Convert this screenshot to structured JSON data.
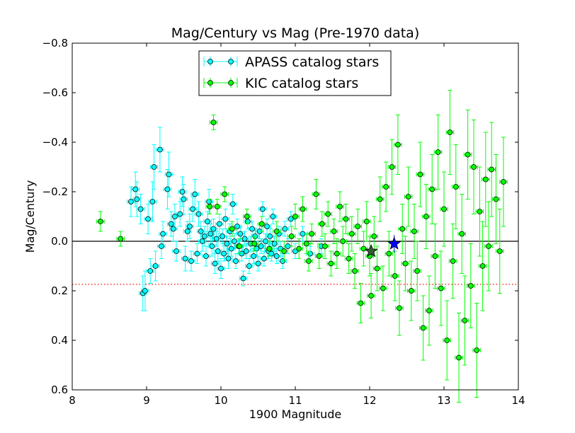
{
  "chart_data": {
    "type": "scatter",
    "title": "Mag/Century vs Mag (Pre-1970 data)",
    "xlabel": "1900 Magnitude",
    "ylabel": "Mag/Century",
    "xlim": [
      8,
      14
    ],
    "ylim": [
      0.6,
      -0.8
    ],
    "y_inverted": true,
    "xticks": [
      8,
      9,
      10,
      11,
      12,
      13,
      14
    ],
    "xtick_labels": [
      "8",
      "9",
      "10",
      "11",
      "12",
      "13",
      "14"
    ],
    "yticks": [
      -0.8,
      -0.6,
      -0.4,
      -0.2,
      0.0,
      0.2,
      0.4,
      0.6
    ],
    "ytick_labels": [
      "−0.8",
      "−0.6",
      "−0.4",
      "−0.2",
      "0.0",
      "0.2",
      "0.4",
      "0.6"
    ],
    "legend_position": "top-center",
    "colors": {
      "apass": "#00ffff",
      "kic": "#00ff00",
      "marker_edge": "#000000",
      "zero_line": "#000000",
      "dotted_line": "#ff0000",
      "target_star": "#0000ff",
      "avg_star": "#3a5a3a"
    },
    "reference_lines": [
      {
        "name": "zero-line",
        "y": 0.0,
        "style": "solid"
      },
      {
        "name": "dotted-reference",
        "y": 0.174,
        "style": "dotted"
      }
    ],
    "special_points": [
      {
        "name": "target-star",
        "marker": "star",
        "x": 12.33,
        "y": 0.01,
        "yerr": 0.035,
        "color": "#0000ff"
      },
      {
        "name": "average-star",
        "marker": "star",
        "x": 12.02,
        "y": 0.04,
        "color": "#3a5a3a"
      }
    ],
    "series": [
      {
        "name": "APASS catalog stars",
        "color": "#00ffff",
        "points": [
          [
            8.79,
            -0.16,
            0.06
          ],
          [
            8.85,
            -0.21,
            0.07
          ],
          [
            8.87,
            -0.17,
            0.07
          ],
          [
            8.92,
            -0.13,
            0.06
          ],
          [
            8.95,
            0.21,
            0.07
          ],
          [
            8.98,
            0.2,
            0.08
          ],
          [
            9.02,
            -0.09,
            0.06
          ],
          [
            9.05,
            0.12,
            0.05
          ],
          [
            9.08,
            -0.16,
            0.08
          ],
          [
            9.1,
            -0.3,
            0.09
          ],
          [
            9.12,
            0.1,
            0.06
          ],
          [
            9.18,
            -0.37,
            0.09
          ],
          [
            9.2,
            0.02,
            0.05
          ],
          [
            9.22,
            -0.03,
            0.05
          ],
          [
            9.28,
            -0.21,
            0.08
          ],
          [
            9.3,
            -0.27,
            0.09
          ],
          [
            9.33,
            -0.07,
            0.05
          ],
          [
            9.36,
            -0.05,
            0.05
          ],
          [
            9.38,
            -0.1,
            0.05
          ],
          [
            9.4,
            0.04,
            0.04
          ],
          [
            9.45,
            -0.11,
            0.05
          ],
          [
            9.48,
            -0.2,
            0.06
          ],
          [
            9.5,
            -0.17,
            0.06
          ],
          [
            9.52,
            0.07,
            0.05
          ],
          [
            9.55,
            -0.04,
            0.04
          ],
          [
            9.58,
            -0.06,
            0.05
          ],
          [
            9.6,
            0.08,
            0.04
          ],
          [
            9.62,
            -0.13,
            0.05
          ],
          [
            9.65,
            -0.19,
            0.06
          ],
          [
            9.68,
            0.05,
            0.04
          ],
          [
            9.7,
            -0.11,
            0.05
          ],
          [
            9.73,
            -0.04,
            0.04
          ],
          [
            9.75,
            0.0,
            0.04
          ],
          [
            9.78,
            -0.02,
            0.04
          ],
          [
            9.8,
            0.06,
            0.04
          ],
          [
            9.82,
            -0.08,
            0.04
          ],
          [
            9.84,
            -0.16,
            0.05
          ],
          [
            9.86,
            -0.03,
            0.04
          ],
          [
            9.88,
            0.02,
            0.04
          ],
          [
            9.9,
            -0.05,
            0.04
          ],
          [
            9.92,
            0.09,
            0.04
          ],
          [
            9.94,
            -0.01,
            0.03
          ],
          [
            9.96,
            0.04,
            0.04
          ],
          [
            9.98,
            -0.07,
            0.04
          ],
          [
            10.0,
            0.11,
            0.04
          ],
          [
            10.02,
            -0.02,
            0.03
          ],
          [
            10.04,
            0.05,
            0.03
          ],
          [
            10.06,
            -0.09,
            0.04
          ],
          [
            10.08,
            0.01,
            0.03
          ],
          [
            10.1,
            0.07,
            0.04
          ],
          [
            10.12,
            -0.04,
            0.03
          ],
          [
            10.14,
            0.03,
            0.03
          ],
          [
            10.16,
            -0.15,
            0.04
          ],
          [
            10.18,
            0.0,
            0.03
          ],
          [
            10.2,
            0.08,
            0.03
          ],
          [
            10.22,
            -0.06,
            0.03
          ],
          [
            10.24,
            0.02,
            0.03
          ],
          [
            10.26,
            -0.03,
            0.03
          ],
          [
            10.28,
            0.05,
            0.03
          ],
          [
            10.3,
            0.15,
            0.03
          ],
          [
            10.32,
            -0.01,
            0.03
          ],
          [
            10.34,
            0.04,
            0.03
          ],
          [
            10.36,
            -0.08,
            0.03
          ],
          [
            10.38,
            0.1,
            0.03
          ],
          [
            10.4,
            0.01,
            0.03
          ],
          [
            10.42,
            -0.05,
            0.03
          ],
          [
            10.44,
            0.06,
            0.03
          ],
          [
            10.46,
            -0.02,
            0.03
          ],
          [
            10.48,
            0.03,
            0.03
          ],
          [
            10.5,
            0.09,
            0.03
          ],
          [
            10.52,
            -0.04,
            0.03
          ],
          [
            10.54,
            0.02,
            0.03
          ],
          [
            10.56,
            -0.13,
            0.03
          ],
          [
            10.58,
            0.07,
            0.03
          ],
          [
            10.6,
            0.0,
            0.03
          ],
          [
            10.62,
            -0.06,
            0.03
          ],
          [
            10.64,
            0.04,
            0.03
          ],
          [
            10.66,
            -0.02,
            0.03
          ],
          [
            10.68,
            0.05,
            0.03
          ],
          [
            10.7,
            -0.1,
            0.03
          ],
          [
            10.72,
            0.01,
            0.03
          ],
          [
            10.75,
            0.06,
            0.03
          ],
          [
            10.78,
            -0.03,
            0.03
          ],
          [
            10.8,
            0.03,
            0.03
          ],
          [
            10.83,
            0.08,
            0.03
          ],
          [
            10.86,
            -0.05,
            0.03
          ],
          [
            10.9,
            0.02,
            0.03
          ],
          [
            10.94,
            -0.09,
            0.03
          ],
          [
            11.0,
            0.04,
            0.03
          ],
          [
            11.1,
            -0.03,
            0.03
          ],
          [
            11.2,
            0.05,
            0.03
          ],
          [
            11.35,
            0.02,
            0.03
          ]
        ]
      },
      {
        "name": "KIC catalog stars",
        "color": "#00ff00",
        "points": [
          [
            8.38,
            -0.08,
            0.04
          ],
          [
            8.65,
            -0.01,
            0.03
          ],
          [
            9.9,
            -0.48,
            0.03
          ],
          [
            9.85,
            -0.14,
            0.03
          ],
          [
            9.95,
            -0.14,
            0.03
          ],
          [
            10.05,
            -0.19,
            0.03
          ],
          [
            10.15,
            -0.05,
            0.03
          ],
          [
            10.25,
            0.02,
            0.03
          ],
          [
            10.35,
            -0.1,
            0.03
          ],
          [
            10.45,
            0.01,
            0.03
          ],
          [
            10.55,
            -0.07,
            0.03
          ],
          [
            10.65,
            0.03,
            0.03
          ],
          [
            10.75,
            -0.04,
            0.04
          ],
          [
            10.85,
            0.04,
            0.04
          ],
          [
            10.95,
            -0.02,
            0.04
          ],
          [
            11.0,
            -0.1,
            0.05
          ],
          [
            11.05,
            0.03,
            0.04
          ],
          [
            11.1,
            -0.13,
            0.05
          ],
          [
            11.15,
            0.01,
            0.04
          ],
          [
            11.18,
            0.08,
            0.04
          ],
          [
            11.22,
            -0.03,
            0.04
          ],
          [
            11.28,
            -0.19,
            0.06
          ],
          [
            11.32,
            0.06,
            0.05
          ],
          [
            11.36,
            -0.07,
            0.05
          ],
          [
            11.4,
            0.02,
            0.05
          ],
          [
            11.44,
            -0.11,
            0.05
          ],
          [
            11.48,
            0.09,
            0.05
          ],
          [
            11.52,
            -0.04,
            0.05
          ],
          [
            11.56,
            0.05,
            0.06
          ],
          [
            11.6,
            -0.14,
            0.06
          ],
          [
            11.64,
            0.0,
            0.06
          ],
          [
            11.68,
            -0.09,
            0.06
          ],
          [
            11.72,
            0.07,
            0.06
          ],
          [
            11.76,
            -0.03,
            0.07
          ],
          [
            11.8,
            0.12,
            0.07
          ],
          [
            11.84,
            -0.06,
            0.07
          ],
          [
            11.88,
            0.25,
            0.08
          ],
          [
            11.92,
            0.03,
            0.07
          ],
          [
            11.96,
            -0.08,
            0.08
          ],
          [
            12.0,
            0.06,
            0.08
          ],
          [
            12.02,
            0.22,
            0.09
          ],
          [
            12.06,
            -0.02,
            0.08
          ],
          [
            12.1,
            0.11,
            0.09
          ],
          [
            12.14,
            -0.17,
            0.09
          ],
          [
            12.18,
            0.19,
            0.09
          ],
          [
            12.22,
            -0.22,
            0.1
          ],
          [
            12.26,
            0.05,
            0.09
          ],
          [
            12.3,
            -0.3,
            0.11
          ],
          [
            12.34,
            0.14,
            0.1
          ],
          [
            12.38,
            -0.39,
            0.12
          ],
          [
            12.4,
            0.27,
            0.11
          ],
          [
            12.44,
            -0.05,
            0.1
          ],
          [
            12.48,
            0.09,
            0.11
          ],
          [
            12.52,
            -0.18,
            0.12
          ],
          [
            12.56,
            0.2,
            0.12
          ],
          [
            12.6,
            -0.04,
            0.11
          ],
          [
            12.64,
            0.12,
            0.12
          ],
          [
            12.68,
            -0.27,
            0.13
          ],
          [
            12.72,
            0.35,
            0.13
          ],
          [
            12.76,
            -0.1,
            0.13
          ],
          [
            12.8,
            0.28,
            0.14
          ],
          [
            12.84,
            -0.21,
            0.14
          ],
          [
            12.88,
            0.06,
            0.13
          ],
          [
            12.92,
            -0.36,
            0.15
          ],
          [
            12.96,
            0.19,
            0.15
          ],
          [
            13.0,
            -0.13,
            0.15
          ],
          [
            13.04,
            0.4,
            0.16
          ],
          [
            13.08,
            -0.44,
            0.17
          ],
          [
            13.12,
            0.08,
            0.15
          ],
          [
            13.16,
            -0.22,
            0.17
          ],
          [
            13.2,
            0.47,
            0.18
          ],
          [
            13.24,
            -0.03,
            0.16
          ],
          [
            13.28,
            0.32,
            0.18
          ],
          [
            13.32,
            -0.35,
            0.18
          ],
          [
            13.36,
            0.18,
            0.17
          ],
          [
            13.4,
            -0.3,
            0.19
          ],
          [
            13.44,
            0.44,
            0.19
          ],
          [
            13.48,
            -0.12,
            0.18
          ],
          [
            13.52,
            0.1,
            0.18
          ],
          [
            13.56,
            -0.25,
            0.19
          ],
          [
            13.6,
            0.02,
            0.18
          ],
          [
            13.64,
            -0.29,
            0.19
          ],
          [
            13.7,
            -0.17,
            0.18
          ],
          [
            13.75,
            0.04,
            0.17
          ],
          [
            13.8,
            -0.24,
            0.18
          ]
        ]
      }
    ]
  }
}
